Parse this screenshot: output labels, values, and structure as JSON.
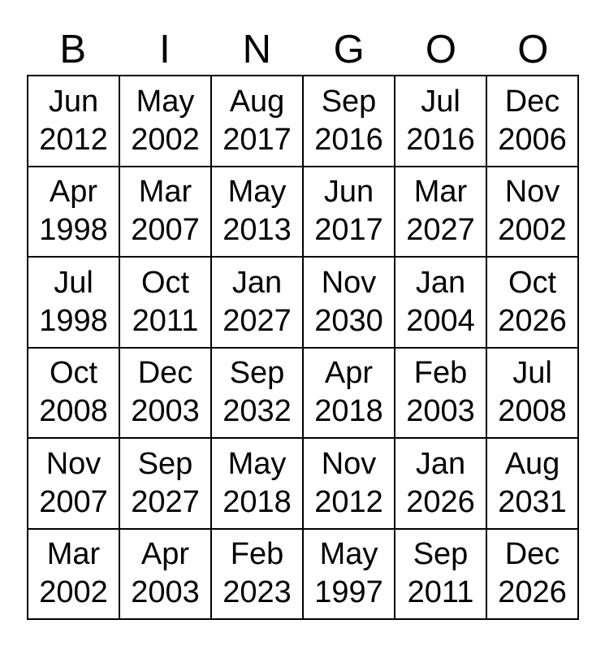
{
  "title": {
    "text": "BINGOO",
    "letters": [
      "B",
      "I",
      "N",
      "G",
      "O",
      "O"
    ]
  },
  "card": {
    "rows": [
      [
        {
          "month": "Jun",
          "year": "2012"
        },
        {
          "month": "May",
          "year": "2002"
        },
        {
          "month": "Aug",
          "year": "2017"
        },
        {
          "month": "Sep",
          "year": "2016"
        },
        {
          "month": "Jul",
          "year": "2016"
        },
        {
          "month": "Dec",
          "year": "2006"
        }
      ],
      [
        {
          "month": "Apr",
          "year": "1998"
        },
        {
          "month": "Mar",
          "year": "2007"
        },
        {
          "month": "May",
          "year": "2013"
        },
        {
          "month": "Jun",
          "year": "2017"
        },
        {
          "month": "Mar",
          "year": "2027"
        },
        {
          "month": "Nov",
          "year": "2002"
        }
      ],
      [
        {
          "month": "Jul",
          "year": "1998"
        },
        {
          "month": "Oct",
          "year": "2011"
        },
        {
          "month": "Jan",
          "year": "2027"
        },
        {
          "month": "Nov",
          "year": "2030"
        },
        {
          "month": "Jan",
          "year": "2004"
        },
        {
          "month": "Oct",
          "year": "2026"
        }
      ],
      [
        {
          "month": "Oct",
          "year": "2008"
        },
        {
          "month": "Dec",
          "year": "2003"
        },
        {
          "month": "Sep",
          "year": "2032"
        },
        {
          "month": "Apr",
          "year": "2018"
        },
        {
          "month": "Feb",
          "year": "2003"
        },
        {
          "month": "Jul",
          "year": "2008"
        }
      ],
      [
        {
          "month": "Nov",
          "year": "2007"
        },
        {
          "month": "Sep",
          "year": "2027"
        },
        {
          "month": "May",
          "year": "2018"
        },
        {
          "month": "Nov",
          "year": "2012"
        },
        {
          "month": "Jan",
          "year": "2026"
        },
        {
          "month": "Aug",
          "year": "2031"
        }
      ],
      [
        {
          "month": "Mar",
          "year": "2002"
        },
        {
          "month": "Apr",
          "year": "2003"
        },
        {
          "month": "Feb",
          "year": "2023"
        },
        {
          "month": "May",
          "year": "1997"
        },
        {
          "month": "Sep",
          "year": "2011"
        },
        {
          "month": "Dec",
          "year": "2026"
        }
      ]
    ]
  },
  "colors": {
    "background": "#ffffff",
    "grid_lines": "#000000",
    "text": "#000000"
  }
}
